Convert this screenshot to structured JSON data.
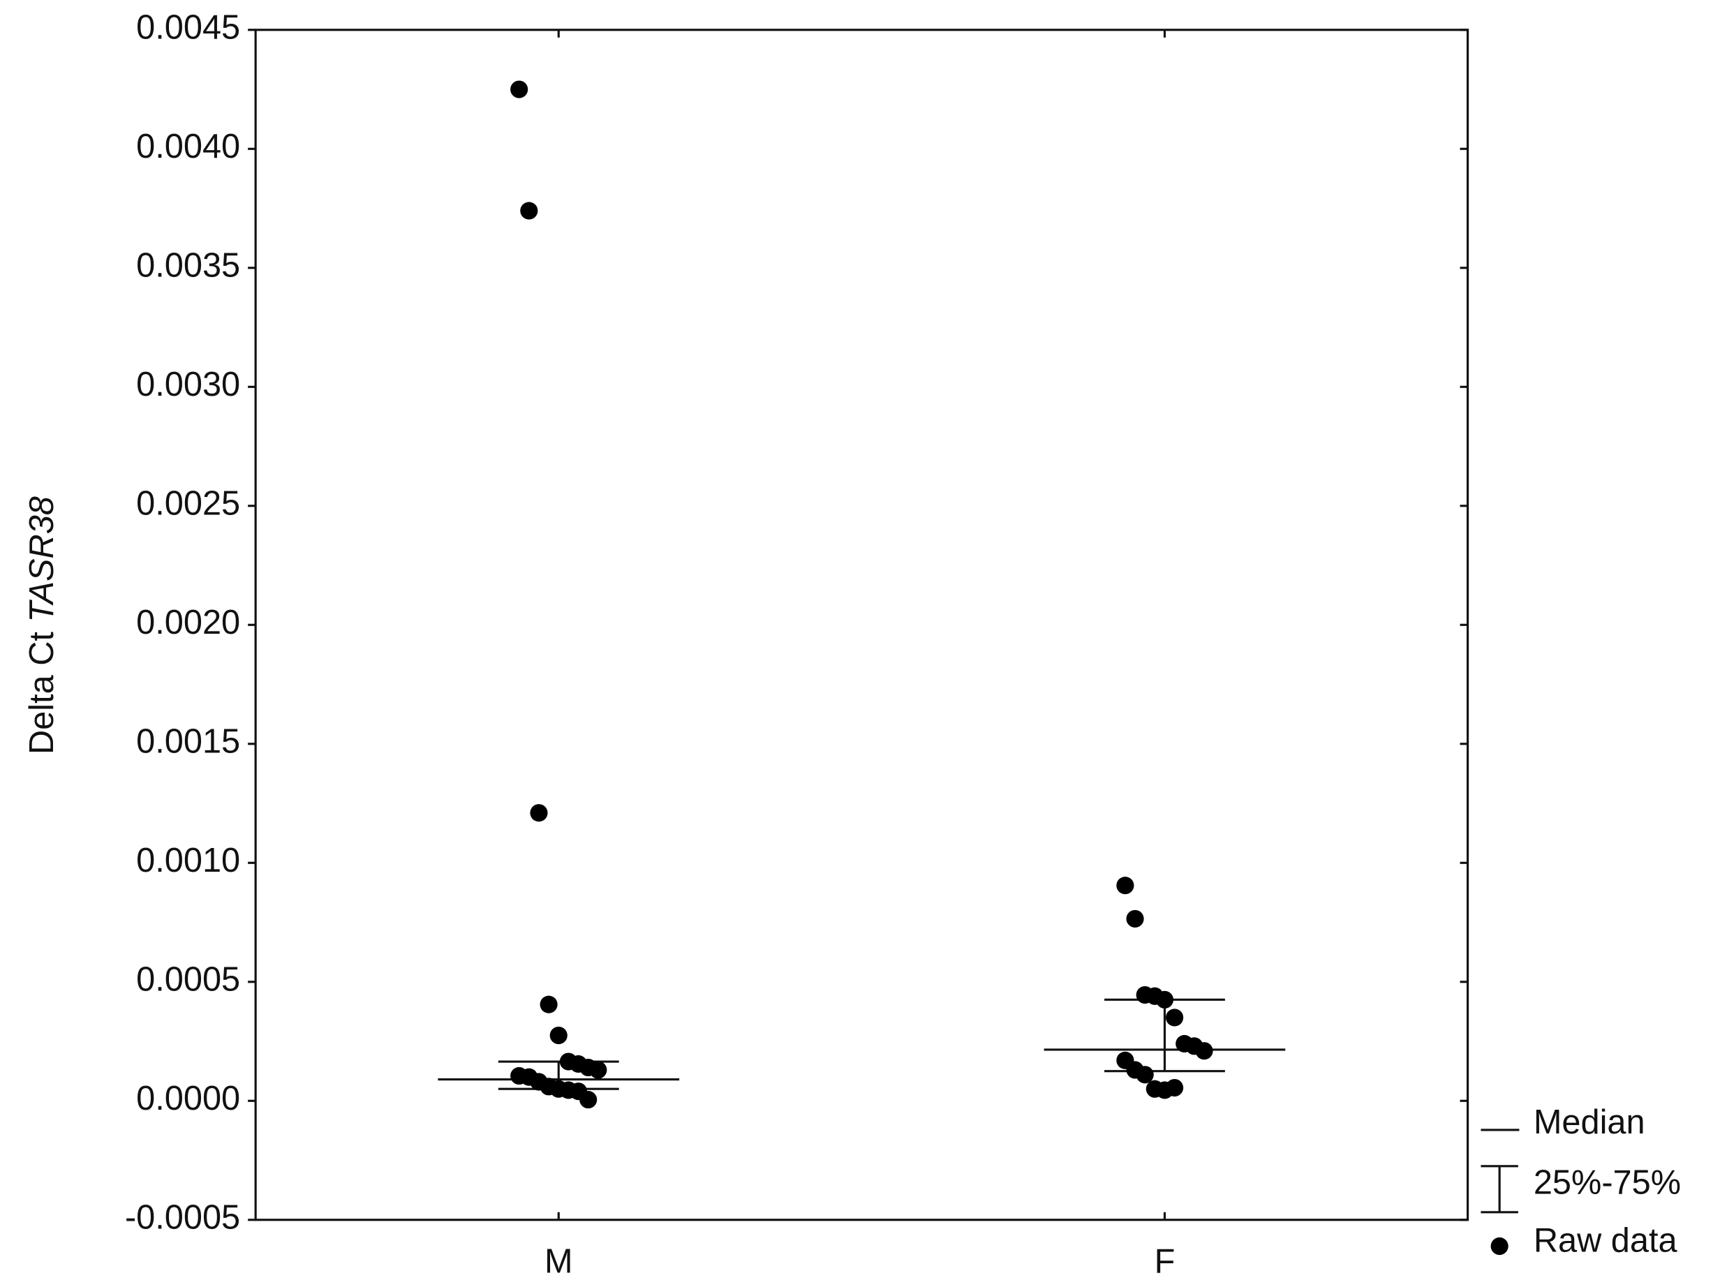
{
  "chart_data": {
    "type": "dot",
    "y_label": [
      "Delta Ct ",
      "TASR38"
    ],
    "categories": [
      "M",
      "F"
    ],
    "median": [
      9e-05,
      0.000215
    ],
    "q1": [
      5e-05,
      0.000125
    ],
    "q3": [
      0.000165,
      0.000425
    ],
    "raw": [
      [
        0.00425,
        0.00374,
        0.00121,
        0.000405,
        0.000275,
        0.000165,
        0.000155,
        0.00014,
        0.00013,
        0.000105,
        0.0001,
        8e-05,
        6e-05,
        5e-05,
        4.5e-05,
        4e-05,
        5e-06
      ],
      [
        0.000905,
        0.000765,
        0.000445,
        0.00044,
        0.000425,
        0.00035,
        0.00024,
        0.00023,
        0.00021,
        0.00017,
        0.00013,
        0.00011,
        5e-05,
        4.5e-05,
        5.5e-05
      ]
    ],
    "legend": {
      "median": "Median",
      "iqr": "25%-75%",
      "raw": "Raw data"
    },
    "color": "#000000",
    "ylim": [
      -0.0005,
      0.0045
    ],
    "yticks": [
      -0.0005,
      {
        "value": 0,
        "label": "0.0000"
      },
      0.0005,
      {
        "value": 0.001,
        "label": "0.0010"
      },
      0.0015,
      {
        "value": 0.002,
        "label": "0.0020"
      },
      0.0025,
      {
        "value": 0.003,
        "label": "0.0030"
      },
      0.0035,
      {
        "value": 0.004,
        "label": "0.0040"
      },
      0.0045
    ]
  }
}
